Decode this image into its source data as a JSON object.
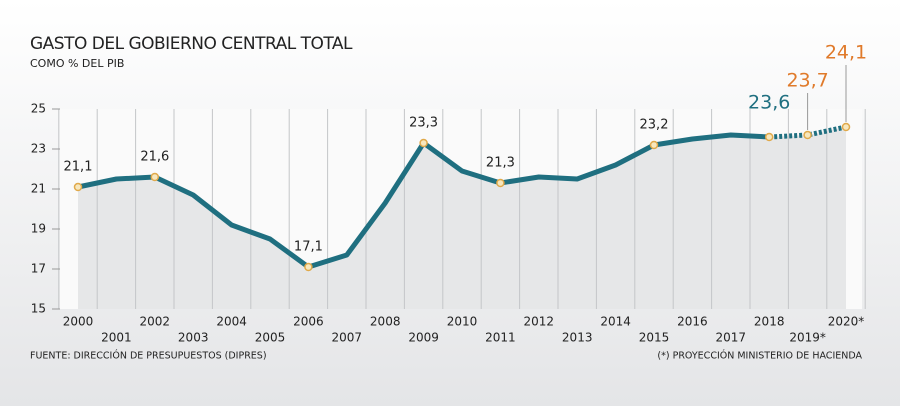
{
  "chart_data": {
    "type": "line",
    "title": "GASTO DEL GOBIERNO CENTRAL TOTAL",
    "subtitle": "COMO % DEL PIB",
    "categories": [
      "2000",
      "2001",
      "2002",
      "2003",
      "2004",
      "2005",
      "2006",
      "2007",
      "2008",
      "2009",
      "2010",
      "2011",
      "2012",
      "2013",
      "2014",
      "2015",
      "2016",
      "2017",
      "2018",
      "2019*",
      "2020*"
    ],
    "values": [
      21.1,
      21.5,
      21.6,
      20.7,
      19.2,
      18.5,
      17.1,
      17.7,
      20.3,
      23.3,
      21.9,
      21.3,
      21.6,
      21.5,
      22.2,
      23.2,
      23.5,
      23.7,
      23.6,
      23.7,
      24.1
    ],
    "value_labels": [
      "21,1",
      null,
      "21,6",
      null,
      null,
      null,
      "17,1",
      null,
      null,
      "23,3",
      null,
      "21,3",
      null,
      null,
      null,
      "23,2",
      null,
      null,
      "23,6",
      "23,7",
      "24,1"
    ],
    "color": "#1f6f80",
    "projection_color": "#e07a2a",
    "ylim": [
      15,
      25
    ],
    "yticks": [
      15,
      17,
      19,
      21,
      23,
      25
    ],
    "source": "FUENTE: DIRECCIÓN DE PRESUPUESTOS (DIPRES)",
    "note": "(*) PROYECCIÓN MINISTERIO DE HACIENDA"
  }
}
